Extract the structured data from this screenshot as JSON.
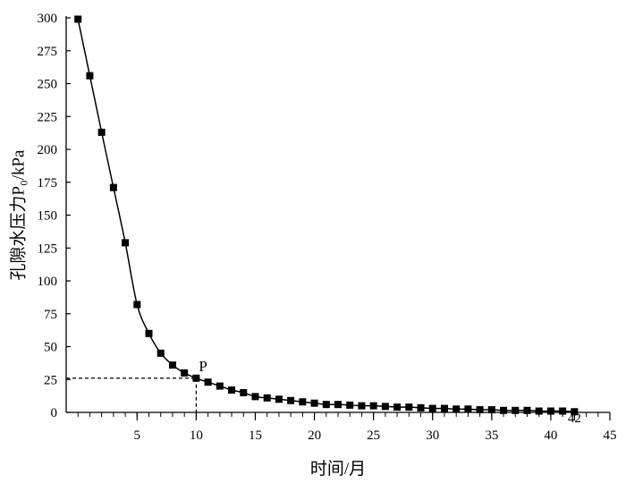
{
  "chart_data": {
    "type": "line",
    "xlabel": "时间/月",
    "ylabel": "孔隙水压力P₀/kPa",
    "xlim": [
      -1,
      45
    ],
    "ylim": [
      0,
      300
    ],
    "xticks": [
      5,
      10,
      15,
      20,
      25,
      30,
      35,
      40,
      45
    ],
    "extra_xtick": 42,
    "yticks": [
      0,
      25,
      50,
      75,
      100,
      125,
      150,
      175,
      200,
      225,
      250,
      275,
      300
    ],
    "grid": false,
    "legend": "none",
    "marker": "square",
    "color": "#000000",
    "series": [
      {
        "x": [
          0,
          1,
          2,
          3,
          4,
          5,
          6,
          7,
          8,
          9,
          10,
          11,
          12,
          13,
          14,
          15,
          16,
          17,
          18,
          19,
          20,
          21,
          22,
          23,
          24,
          25,
          26,
          27,
          28,
          29,
          30,
          31,
          32,
          33,
          34,
          35,
          36,
          37,
          38,
          39,
          40,
          41,
          42
        ],
        "values": [
          299,
          256,
          213,
          171,
          129,
          82,
          60,
          45,
          36,
          30,
          26,
          23,
          20,
          17,
          15,
          12,
          11,
          10,
          9,
          8,
          7,
          6,
          6,
          5.5,
          5,
          5,
          4.5,
          4,
          4,
          3.5,
          3,
          3,
          2.5,
          2.5,
          2,
          2,
          1.5,
          1.5,
          1.5,
          1,
          1,
          1,
          0.5
        ]
      }
    ],
    "annotations": [
      {
        "label": "P",
        "x": 10,
        "y": 26,
        "guide_lines": "dashed"
      }
    ]
  }
}
